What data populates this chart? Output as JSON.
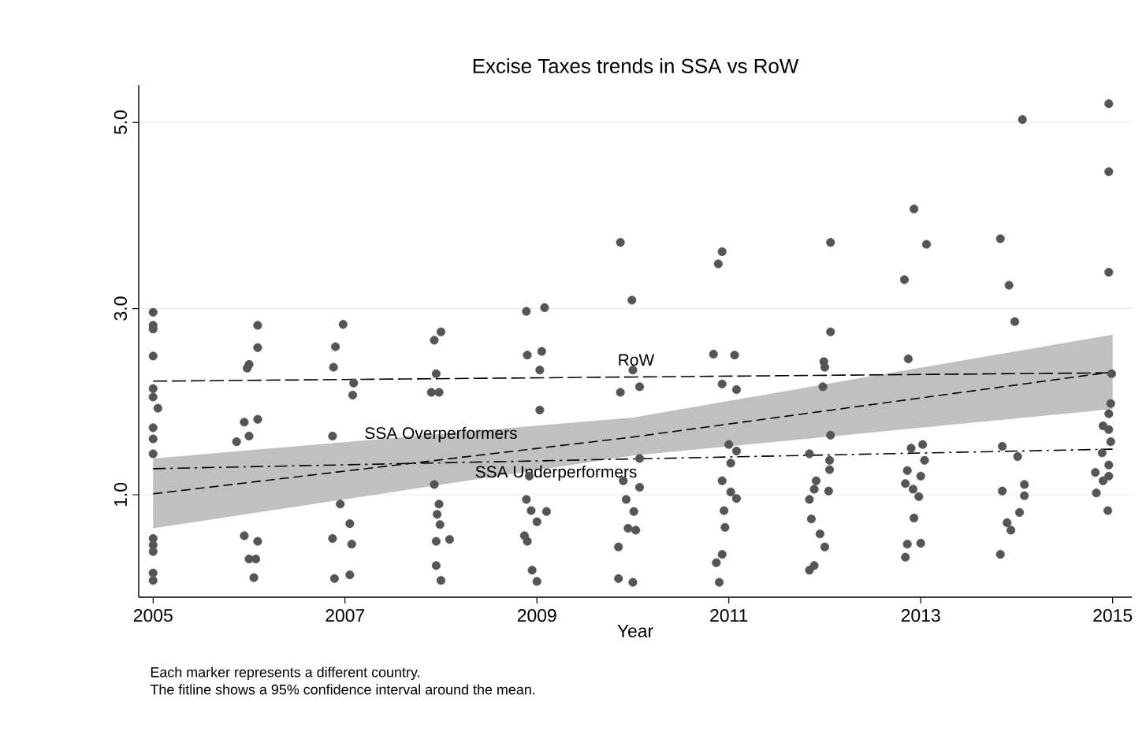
{
  "chart_data": {
    "type": "scatter",
    "title": "Excise Taxes trends in SSA vs RoW",
    "xlabel": "Year",
    "xlim": [
      2004.85,
      2015.2
    ],
    "xticks": [
      2005,
      2007,
      2009,
      2011,
      2013,
      2015
    ],
    "ylim": [
      -0.1,
      5.4
    ],
    "yticks": [
      {
        "value": 1,
        "label": "1.0"
      },
      {
        "value": 3,
        "label": "3.0"
      },
      {
        "value": 5,
        "label": "5.0"
      }
    ],
    "grid": "y",
    "annotations": [
      "Each marker represents a different country.",
      "The fitline shows a 95% confidence interval around the mean."
    ],
    "series": [
      {
        "color": "#555555",
        "marker": "circle",
        "x": [
          2005.0,
          2005.0,
          2005.0,
          2005.0,
          2005.0,
          2005.0,
          2005.05,
          2005.0,
          2005.0,
          2005.0,
          2005.0,
          2005.0,
          2005.0,
          2005.0,
          2005.0,
          2006.09,
          2006.09,
          2006.0,
          2005.98,
          2005.95,
          2006.09,
          2005.87,
          2006.0,
          2005.95,
          2006.09,
          2006.0,
          2006.07,
          2006.05,
          2006.98,
          2006.9,
          2006.88,
          2007.09,
          2007.08,
          2006.87,
          2006.95,
          2007.05,
          2006.87,
          2007.07,
          2006.89,
          2007.05,
          2008.0,
          2007.93,
          2007.95,
          2007.9,
          2007.98,
          2007.93,
          2007.98,
          2007.96,
          2007.99,
          2007.95,
          2008.09,
          2007.95,
          2008.0,
          2008.89,
          2009.08,
          2008.9,
          2009.05,
          2009.03,
          2009.03,
          2008.92,
          2008.89,
          2008.94,
          2009.1,
          2009.0,
          2008.87,
          2008.9,
          2008.95,
          2009.0,
          2009.87,
          2009.99,
          2010.0,
          2010.07,
          2009.87,
          2010.07,
          2009.9,
          2010.07,
          2009.93,
          2010.01,
          2009.95,
          2010.03,
          2009.85,
          2009.85,
          2010.0,
          2010.93,
          2010.89,
          2010.84,
          2011.06,
          2010.93,
          2011.08,
          2011.0,
          2011.08,
          2011.02,
          2010.93,
          2011.02,
          2011.08,
          2010.95,
          2010.96,
          2010.93,
          2010.87,
          2010.9,
          2012.06,
          2012.06,
          2011.99,
          2012.0,
          2011.98,
          2012.06,
          2011.84,
          2012.05,
          2012.05,
          2011.91,
          2011.89,
          2012.04,
          2011.84,
          2011.86,
          2011.95,
          2012.0,
          2011.89,
          2011.84,
          2012.93,
          2013.06,
          2012.83,
          2012.87,
          2013.02,
          2012.9,
          2013.04,
          2012.86,
          2013.0,
          2012.84,
          2012.92,
          2012.98,
          2012.93,
          2012.86,
          2013.0,
          2012.84,
          2014.06,
          2013.83,
          2013.92,
          2013.98,
          2013.85,
          2014.01,
          2014.08,
          2013.85,
          2014.08,
          2014.03,
          2013.9,
          2013.94,
          2013.83,
          2014.96,
          2014.96,
          2014.96,
          2014.99,
          2014.98,
          2014.96,
          2014.9,
          2014.96,
          2014.98,
          2014.96,
          2014.89,
          2014.82,
          2014.9,
          2014.96,
          2014.83,
          2014.95
        ],
        "values": [
          2.96,
          2.82,
          2.78,
          2.49,
          2.14,
          2.05,
          1.93,
          1.72,
          1.6,
          1.44,
          0.53,
          0.46,
          0.39,
          0.16,
          0.08,
          2.82,
          2.58,
          2.4,
          2.36,
          1.78,
          1.81,
          1.57,
          1.63,
          0.56,
          0.5,
          0.31,
          0.31,
          0.11,
          2.83,
          2.59,
          2.37,
          2.2,
          2.07,
          1.63,
          0.9,
          0.69,
          0.53,
          0.47,
          0.1,
          0.14,
          2.75,
          2.66,
          2.3,
          2.1,
          2.1,
          1.11,
          0.9,
          0.79,
          0.68,
          0.5,
          0.52,
          0.24,
          0.08,
          2.97,
          3.01,
          2.5,
          2.54,
          2.34,
          1.91,
          1.2,
          0.95,
          0.83,
          0.82,
          0.71,
          0.56,
          0.5,
          0.19,
          0.07,
          3.71,
          3.09,
          2.34,
          2.16,
          2.1,
          1.39,
          1.15,
          1.08,
          0.95,
          0.82,
          0.64,
          0.62,
          0.44,
          0.1,
          0.06,
          3.61,
          3.48,
          2.51,
          2.5,
          2.19,
          2.13,
          1.54,
          1.47,
          1.34,
          1.15,
          1.03,
          0.96,
          0.83,
          0.65,
          0.36,
          0.27,
          0.06,
          3.71,
          2.75,
          2.43,
          2.37,
          2.16,
          1.64,
          1.44,
          1.37,
          1.27,
          1.15,
          1.06,
          1.04,
          0.95,
          0.74,
          0.58,
          0.44,
          0.24,
          0.19,
          4.07,
          3.69,
          3.31,
          2.46,
          1.54,
          1.5,
          1.37,
          1.26,
          1.2,
          1.12,
          1.06,
          0.98,
          0.75,
          0.47,
          0.48,
          0.33,
          5.03,
          3.75,
          3.25,
          2.86,
          1.52,
          1.41,
          1.11,
          1.04,
          0.99,
          0.81,
          0.7,
          0.62,
          0.36,
          5.2,
          4.47,
          3.39,
          2.3,
          1.98,
          1.87,
          1.74,
          1.7,
          1.57,
          1.32,
          1.45,
          1.24,
          1.15,
          1.2,
          1.02,
          0.83
        ]
      },
      {
        "type": "line",
        "name": "RoW",
        "color": "#000000",
        "line_style": "dashed",
        "x": [
          2005,
          2015
        ],
        "values": [
          2.22,
          2.31
        ]
      },
      {
        "type": "line",
        "name": "SSA Overperformers",
        "color": "#000000",
        "line_style": "dashed",
        "x": [
          2005,
          2010,
          2015
        ],
        "values": [
          1.01,
          1.62,
          2.32
        ],
        "lower": [
          0.64,
          1.42,
          1.92
        ],
        "upper": [
          1.39,
          1.83,
          2.72
        ]
      },
      {
        "type": "line",
        "name": "SSA Underperformers",
        "color": "#000000",
        "line_style": "dashdot",
        "x": [
          2005,
          2015
        ],
        "values": [
          1.28,
          1.49
        ]
      }
    ]
  }
}
